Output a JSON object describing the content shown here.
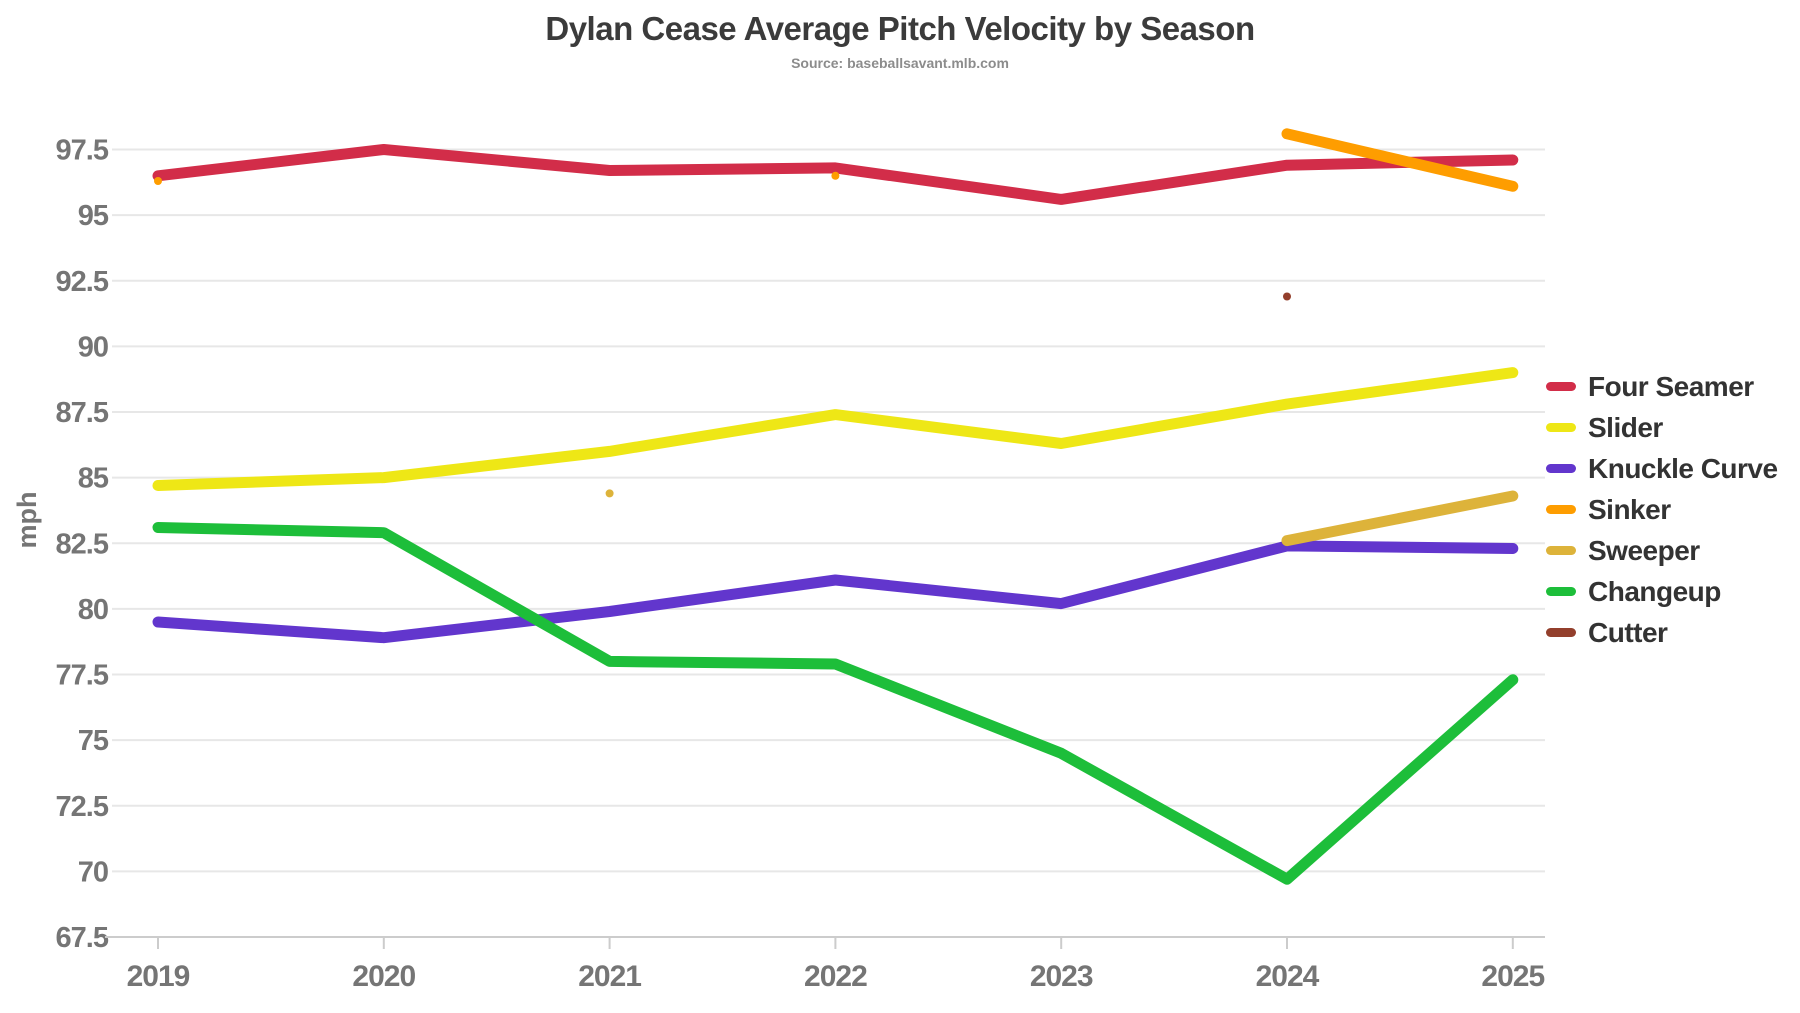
{
  "title": "Dylan Cease Average Pitch Velocity by Season",
  "subtitle": "Source: baseballsavant.mlb.com",
  "colors": {
    "background": "#ffffff",
    "title_text": "#3b3b3b",
    "subtitle_text": "#8c8c8c",
    "axis_text": "#757575",
    "gridline": "#e7e7e7",
    "axis_line": "#cccccc",
    "legend_text": "#333333"
  },
  "chart_data": {
    "type": "line",
    "title": "Dylan Cease Average Pitch Velocity by Season",
    "subtitle": "Source: baseballsavant.mlb.com",
    "x": [
      "2019",
      "2020",
      "2021",
      "2022",
      "2023",
      "2024",
      "2025"
    ],
    "xlabel": "",
    "ylabel": "mph",
    "ylim": [
      67.5,
      99.0
    ],
    "yticks": [
      97.5,
      95,
      92.5,
      90,
      87.5,
      85,
      82.5,
      80,
      77.5,
      75,
      72.5,
      70,
      67.5
    ],
    "grid": true,
    "legend_position": "right",
    "series": [
      {
        "name": "Four Seamer",
        "color": "#d22d49",
        "values": [
          96.5,
          97.5,
          96.7,
          96.8,
          95.6,
          96.9,
          97.1
        ]
      },
      {
        "name": "Slider",
        "color": "#eee716",
        "values": [
          84.7,
          85.0,
          86.0,
          87.4,
          86.3,
          87.8,
          89.0
        ]
      },
      {
        "name": "Knuckle Curve",
        "color": "#6236cd",
        "values": [
          79.5,
          78.9,
          79.9,
          81.1,
          80.2,
          82.4,
          82.3
        ]
      },
      {
        "name": "Sinker",
        "color": "#fe9d00",
        "values": [
          96.3,
          null,
          null,
          96.5,
          null,
          98.1,
          96.1
        ]
      },
      {
        "name": "Sweeper",
        "color": "#ddb33a",
        "values": [
          null,
          null,
          84.4,
          null,
          null,
          82.6,
          84.3
        ]
      },
      {
        "name": "Changeup",
        "color": "#1dbe3a",
        "values": [
          83.1,
          82.9,
          78.0,
          77.9,
          74.5,
          69.7,
          77.3
        ]
      },
      {
        "name": "Cutter",
        "color": "#933f2c",
        "values": [
          null,
          null,
          null,
          null,
          null,
          91.9,
          null
        ]
      }
    ]
  }
}
